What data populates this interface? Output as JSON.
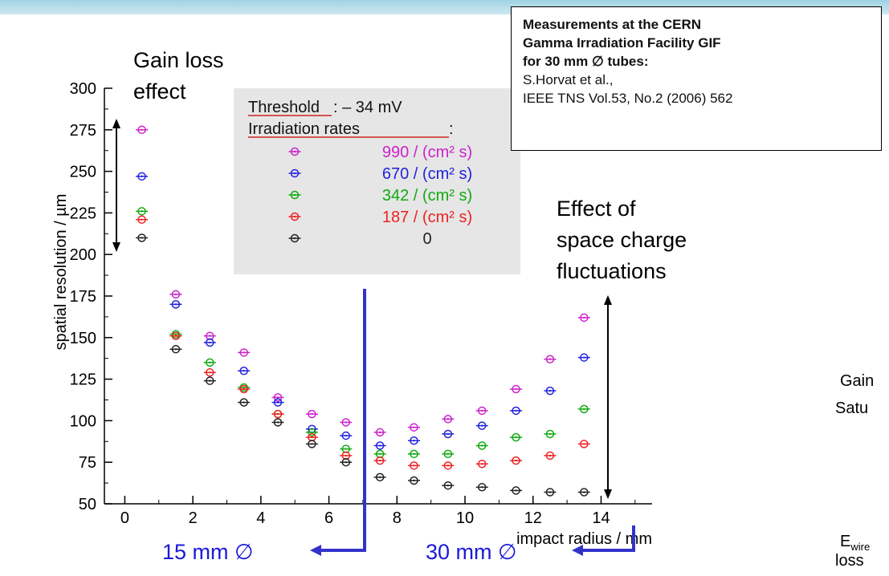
{
  "reference": {
    "line1": "Measurements at the CERN",
    "line2": "Gamma Irradiation Facility GIF",
    "line3": "for 30 mm ∅  tubes:",
    "line4": "S.Horvat et al.,",
    "line5": "IEEE TNS Vol.53, No.2 (2006) 562"
  },
  "annotations": {
    "gain_loss_1": "Gain loss",
    "gain_loss_2": "effect",
    "space_charge_1": "Effect of",
    "space_charge_2": "space charge",
    "space_charge_3": "fluctuations",
    "gain_cut": "Gain",
    "saturation_cut": "Satu",
    "ewire_main": "E",
    "ewire_sub": "wire",
    "loss_cut": "loss",
    "diameter_15": "15 mm ∅",
    "diameter_30": "30 mm ∅"
  },
  "colors": {
    "diameter_marker": "#3333cc",
    "annotation_arrow": "#000000"
  },
  "chart_data": {
    "type": "scatter",
    "title": "",
    "xlabel": "impact radius / mm",
    "ylabel": "spatial resolution / µm",
    "xlim": [
      -0.6,
      15.5
    ],
    "ylim": [
      50,
      300
    ],
    "xticks": [
      0,
      2,
      4,
      6,
      8,
      10,
      12,
      14
    ],
    "yticks": [
      50,
      75,
      100,
      125,
      150,
      175,
      200,
      225,
      250,
      275,
      300
    ],
    "legend": {
      "placement": "top-center",
      "header_threshold_label": "Threshold",
      "header_threshold_value": ": – 34 mV",
      "header_rates_label": "Irradiation rates",
      "header_rates_suffix": ":"
    },
    "x": [
      0.5,
      1.5,
      2.5,
      3.5,
      4.5,
      5.5,
      6.5,
      7.5,
      8.5,
      9.5,
      10.5,
      11.5,
      12.5,
      13.5
    ],
    "series": [
      {
        "name": "990 / (cm² s)",
        "color": "#cc22cc",
        "values": [
          275,
          176,
          151,
          141,
          114,
          104,
          99,
          93,
          96,
          101,
          106,
          119,
          137,
          162
        ]
      },
      {
        "name": "670 / (cm² s)",
        "color": "#2222dd",
        "values": [
          247,
          170,
          147,
          130,
          111,
          95,
          91,
          85,
          88,
          92,
          97,
          106,
          118,
          138
        ]
      },
      {
        "name": "342 / (cm² s)",
        "color": "#11aa11",
        "values": [
          226,
          152,
          135,
          120,
          104,
          93,
          83,
          80,
          80,
          80,
          85,
          90,
          92,
          107
        ]
      },
      {
        "name": "187 / (cm² s)",
        "color": "#ee2222",
        "values": [
          221,
          151,
          129,
          119,
          104,
          90,
          79,
          76,
          73,
          73,
          74,
          76,
          79,
          86
        ]
      },
      {
        "name": "0",
        "color": "#222222",
        "values": [
          210,
          143,
          124,
          111,
          99,
          86,
          75,
          66,
          64,
          61,
          60,
          58,
          57,
          57
        ]
      }
    ]
  }
}
